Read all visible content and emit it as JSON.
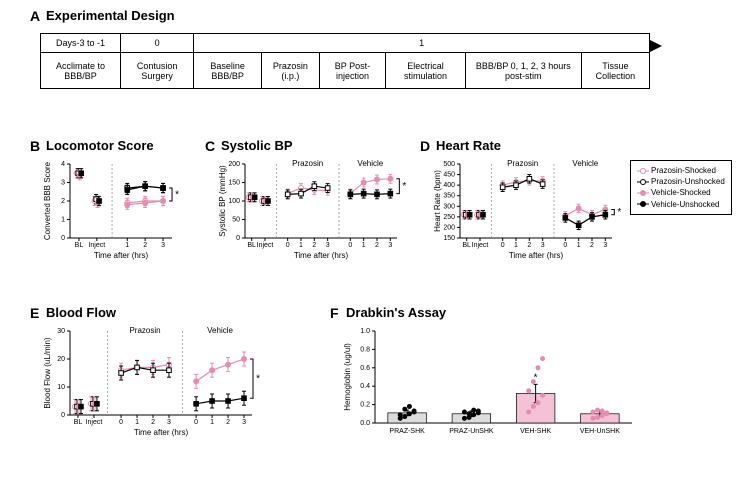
{
  "colors": {
    "pink": "#e78bb0",
    "pink_fill": "#e78bb0",
    "black": "#000000",
    "white": "#ffffff",
    "bar_pink_light": "#f3c2d6",
    "bar_gray": "#dcdcdc"
  },
  "legend": {
    "items": [
      {
        "label": "Prazosin-Shocked",
        "color": "pink",
        "fill": "white"
      },
      {
        "label": "Prazosin-Unshocked",
        "color": "black",
        "fill": "white"
      },
      {
        "label": "Vehicle-Shocked",
        "color": "pink",
        "fill": "pink"
      },
      {
        "label": "Vehicle-Unshocked",
        "color": "black",
        "fill": "black"
      }
    ]
  },
  "panelA": {
    "letter": "A",
    "title": "Experimental Design",
    "header": [
      "Days-3 to -1",
      "0",
      "1"
    ],
    "row": [
      "Acclimate to BBB/BP",
      "Contusion Surgery",
      "Baseline BBB/BP",
      "Prazosin (i.p.)",
      "BP Post-injection",
      "Electrical stimulation",
      "BBB/BP 0, 1, 2, 3 hours post-stim",
      "Tissue Collection"
    ]
  },
  "panelB": {
    "letter": "B",
    "title": "Locomotor Score",
    "ylabel": "Converted BBB Score",
    "xlabel": "Time after (hrs)",
    "ylim": [
      0,
      4
    ],
    "yticks": [
      0,
      1,
      2,
      3,
      4
    ],
    "xcats_bl": [
      "BL",
      "Inject"
    ],
    "xcats": [
      "1",
      "2",
      "3"
    ],
    "bl": {
      "PS": [
        3.5,
        2.0
      ],
      "PU": [
        3.5,
        2.1
      ],
      "VS": [
        3.4,
        1.9
      ],
      "VU": [
        3.5,
        2.0
      ]
    },
    "main": {
      "PS": [
        1.9,
        2.0,
        2.0
      ],
      "PU": [
        2.7,
        2.8,
        2.7
      ],
      "VS": [
        1.8,
        1.9,
        2.0
      ],
      "VU": [
        2.6,
        2.8,
        2.7
      ]
    },
    "err": 0.25,
    "sig": "*"
  },
  "panelC": {
    "letter": "C",
    "title": "Systolic BP",
    "ylabel": "Systolic BP (mmHg)",
    "xlabel": "Time after (hrs)",
    "ylim": [
      0,
      200
    ],
    "yticks": [
      0,
      50,
      100,
      150,
      200
    ],
    "xcats_bl": [
      "BL",
      "Inject"
    ],
    "xcats": [
      "0",
      "1",
      "2",
      "3"
    ],
    "subheads": [
      "Prazosin",
      "Vehicle"
    ],
    "bl": {
      "all": [
        110,
        100
      ]
    },
    "groups": {
      "prazosin": {
        "PS": [
          120,
          135,
          130,
          128
        ],
        "PU": [
          118,
          120,
          140,
          135
        ]
      },
      "vehicle": {
        "VS": [
          120,
          150,
          158,
          160
        ],
        "VU": [
          118,
          120,
          118,
          120
        ]
      }
    },
    "err": 12,
    "sig": "*"
  },
  "panelD": {
    "letter": "D",
    "title": "Heart Rate",
    "ylabel": "Heart Rate (bpm)",
    "xlabel": "Time after (hrs)",
    "ylim": [
      150,
      500
    ],
    "yticks": [
      150,
      200,
      250,
      300,
      350,
      400,
      450,
      500
    ],
    "xcats_bl": [
      "BL",
      "Inject"
    ],
    "xcats": [
      "0",
      "1",
      "2",
      "3"
    ],
    "subheads": [
      "Prazosin",
      "Vehicle"
    ],
    "bl": {
      "all": [
        260,
        260
      ]
    },
    "groups": {
      "prazosin": {
        "PS": [
          400,
          415,
          420,
          420
        ],
        "PU": [
          390,
          400,
          430,
          405
        ]
      },
      "vehicle": {
        "VS": [
          255,
          290,
          260,
          285
        ],
        "VU": [
          245,
          210,
          250,
          260
        ]
      }
    },
    "err": 20,
    "sig": "*"
  },
  "panelE": {
    "letter": "E",
    "title": "Blood Flow",
    "ylabel": "Blood Flow (uL/min)",
    "xlabel": "Time after (hrs)",
    "ylim": [
      0,
      30
    ],
    "yticks": [
      0,
      10,
      20,
      30
    ],
    "xcats_bl": [
      "BL",
      "Inject"
    ],
    "xcats": [
      "0",
      "1",
      "2",
      "3"
    ],
    "subheads": [
      "Prazosin",
      "Vehicle"
    ],
    "bl": {
      "all": [
        3,
        4
      ]
    },
    "groups": {
      "prazosin": {
        "PS": [
          16,
          17,
          17,
          18
        ],
        "PU": [
          15,
          17,
          16,
          16
        ]
      },
      "vehicle": {
        "VS": [
          12,
          16,
          18,
          20
        ],
        "VU": [
          4,
          5,
          5,
          6
        ]
      }
    },
    "err": 2.5,
    "sig": "*"
  },
  "panelF": {
    "letter": "F",
    "title": "Drabkin's Assay",
    "ylabel": "Hemoglobin (ug/ul)",
    "ylim": [
      0,
      1.0
    ],
    "yticks": [
      0.0,
      0.2,
      0.4,
      0.6,
      0.8,
      1.0
    ],
    "cats": [
      "PRAZ-SHK",
      "PRAZ-UnSHK",
      "VEH-SHK",
      "VEH-UnSHK"
    ],
    "means": [
      0.11,
      0.1,
      0.32,
      0.1
    ],
    "errs": [
      0.03,
      0.03,
      0.1,
      0.03
    ],
    "bar_colors": [
      "bar_gray",
      "bar_gray",
      "bar_pink_light",
      "bar_pink_light"
    ],
    "dot_colors": [
      "black",
      "black",
      "pink",
      "pink"
    ],
    "points": {
      "PRAZ-SHK": [
        0.05,
        0.07,
        0.1,
        0.12,
        0.09,
        0.15,
        0.18,
        0.13
      ],
      "PRAZ-UnSHK": [
        0.05,
        0.06,
        0.09,
        0.11,
        0.12,
        0.1,
        0.14,
        0.13
      ],
      "VEH-SHK": [
        0.12,
        0.18,
        0.22,
        0.3,
        0.35,
        0.45,
        0.6,
        0.7
      ],
      "VEH-UnSHK": [
        0.05,
        0.06,
        0.08,
        0.1,
        0.12,
        0.14,
        0.13,
        0.11
      ]
    },
    "sig": "*"
  }
}
